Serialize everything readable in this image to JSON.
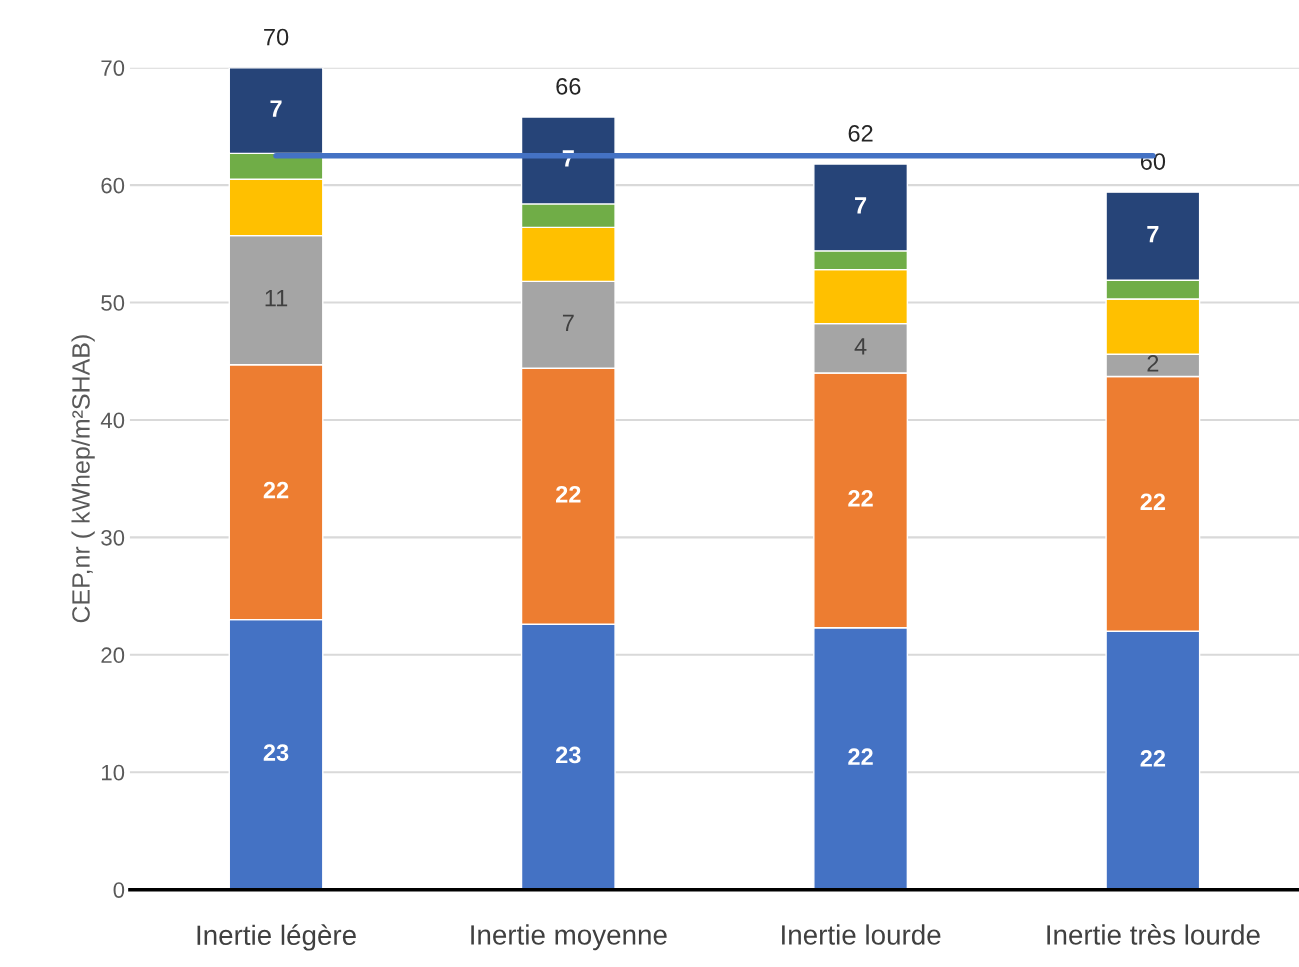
{
  "chart_data": {
    "type": "bar",
    "stacked": true,
    "ylabel": "CEP,nr ( kWhep/m²SHAB)",
    "categories": [
      "Inertie légère",
      "Inertie moyenne",
      "Inertie lourde",
      "Inertie très lourde"
    ],
    "series": [
      {
        "color": "#4472c4",
        "values": [
          23.0,
          22.6,
          22.3,
          22.0
        ],
        "value_labels": [
          "23",
          "23",
          "22",
          "22"
        ]
      },
      {
        "color": "#ed7d31",
        "values": [
          21.7,
          21.8,
          21.7,
          21.7
        ],
        "value_labels": [
          "22",
          "22",
          "22",
          "22"
        ]
      },
      {
        "color": "#a5a5a5",
        "values": [
          11.0,
          7.4,
          4.2,
          1.9
        ],
        "value_labels": [
          "11",
          "7",
          "4",
          "2"
        ]
      },
      {
        "color": "#ffc000",
        "values": [
          4.8,
          4.6,
          4.6,
          4.7
        ]
      },
      {
        "color": "#70ad47",
        "values": [
          2.2,
          2.0,
          1.6,
          1.6
        ]
      },
      {
        "color": "#264478",
        "values": [
          7.3,
          7.4,
          7.4,
          7.5
        ],
        "value_labels": [
          "7",
          "7",
          "7",
          "7"
        ]
      },
      {
        "type": "line",
        "color": "#4472c4",
        "values": [
          62.5,
          62.5,
          62.5,
          62.5
        ]
      }
    ],
    "totals": [
      "70",
      "66",
      "62",
      "60"
    ],
    "ylim": [
      0,
      70
    ],
    "yticks": [
      0,
      10,
      20,
      30,
      40,
      50,
      60,
      70
    ],
    "grid": "y",
    "legend": false
  }
}
